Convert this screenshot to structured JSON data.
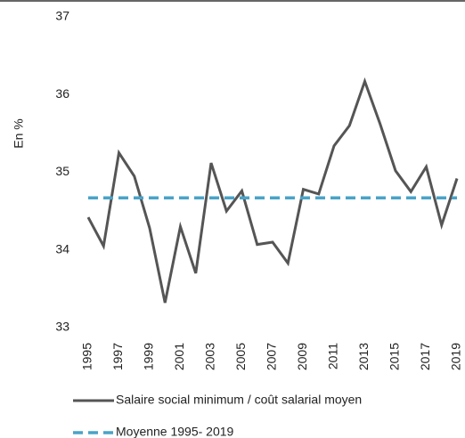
{
  "chart_data": {
    "type": "line",
    "y_label": "En %",
    "x": [
      1995,
      1996,
      1997,
      1998,
      1999,
      2000,
      2001,
      2002,
      2003,
      2004,
      2005,
      2006,
      2007,
      2008,
      2009,
      2010,
      2011,
      2012,
      2013,
      2014,
      2015,
      2016,
      2017,
      2018,
      2019
    ],
    "xlim": [
      1995,
      2019
    ],
    "xticks": [
      1995,
      1997,
      1999,
      2001,
      2003,
      2005,
      2007,
      2009,
      2011,
      2013,
      2015,
      2017,
      2019
    ],
    "ylim": [
      33,
      37
    ],
    "yticks": [
      33,
      34,
      35,
      36,
      37
    ],
    "grid": false,
    "series": [
      {
        "name": "Salaire social minimum / coût salarial moyen",
        "color": "#555555",
        "style": "solid",
        "values": [
          34.42,
          34.05,
          35.25,
          34.95,
          34.28,
          33.32,
          34.3,
          33.7,
          35.12,
          34.5,
          34.76,
          34.07,
          34.1,
          33.83,
          34.78,
          34.72,
          35.34,
          35.6,
          36.17,
          35.62,
          35.02,
          34.75,
          35.07,
          34.32,
          34.92
        ]
      },
      {
        "name": "Moyenne 1995- 2019",
        "color": "#4aa3c8",
        "style": "dashed",
        "values": [
          34.67,
          34.67,
          34.67,
          34.67,
          34.67,
          34.67,
          34.67,
          34.67,
          34.67,
          34.67,
          34.67,
          34.67,
          34.67,
          34.67,
          34.67,
          34.67,
          34.67,
          34.67,
          34.67,
          34.67,
          34.67,
          34.67,
          34.67,
          34.67,
          34.67
        ]
      }
    ]
  }
}
